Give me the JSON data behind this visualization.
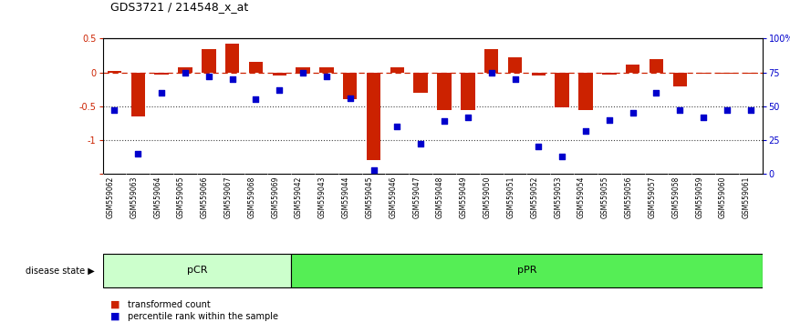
{
  "title": "GDS3721 / 214548_x_at",
  "samples": [
    "GSM559062",
    "GSM559063",
    "GSM559064",
    "GSM559065",
    "GSM559066",
    "GSM559067",
    "GSM559068",
    "GSM559069",
    "GSM559042",
    "GSM559043",
    "GSM559044",
    "GSM559045",
    "GSM559046",
    "GSM559047",
    "GSM559048",
    "GSM559049",
    "GSM559050",
    "GSM559051",
    "GSM559052",
    "GSM559053",
    "GSM559054",
    "GSM559055",
    "GSM559056",
    "GSM559057",
    "GSM559058",
    "GSM559059",
    "GSM559060",
    "GSM559061"
  ],
  "bar_values": [
    0.02,
    -0.65,
    -0.03,
    0.08,
    0.35,
    0.42,
    0.15,
    -0.05,
    0.07,
    0.08,
    -0.4,
    -1.3,
    0.07,
    -0.3,
    -0.55,
    -0.55,
    0.35,
    0.22,
    -0.05,
    -0.52,
    -0.55,
    -0.03,
    0.12,
    0.2,
    -0.2,
    -0.02,
    -0.02,
    -0.02
  ],
  "dot_values": [
    47,
    15,
    60,
    75,
    72,
    70,
    55,
    62,
    75,
    72,
    56,
    3,
    35,
    22,
    39,
    42,
    75,
    70,
    20,
    13,
    32,
    40,
    45,
    60,
    47,
    42,
    47,
    47
  ],
  "pCR_count": 8,
  "pPR_count": 20,
  "ylim_left": [
    -1.5,
    0.5
  ],
  "ylim_right": [
    0,
    100
  ],
  "yticks_left": [
    -1.5,
    -1.0,
    -0.5,
    0.0,
    0.5
  ],
  "ytick_labels_left": [
    "",
    "-1",
    "-0.5",
    "0",
    "0.5"
  ],
  "yticks_right": [
    0,
    25,
    50,
    75,
    100
  ],
  "ytick_labels_right": [
    "0",
    "25",
    "50",
    "75",
    "100%"
  ],
  "bar_color": "#cc2200",
  "dot_color": "#0000cc",
  "hline_color": "#cc2200",
  "grid_color": "#444444",
  "bg_color": "#ffffff",
  "tick_area_color": "#c8c8c8",
  "pCR_color": "#ccffcc",
  "pPR_color": "#55ee55",
  "legend_label_bar": "transformed count",
  "legend_label_dot": "percentile rank within the sample",
  "disease_state_label": "disease state",
  "pCR_label": "pCR",
  "pPR_label": "pPR"
}
